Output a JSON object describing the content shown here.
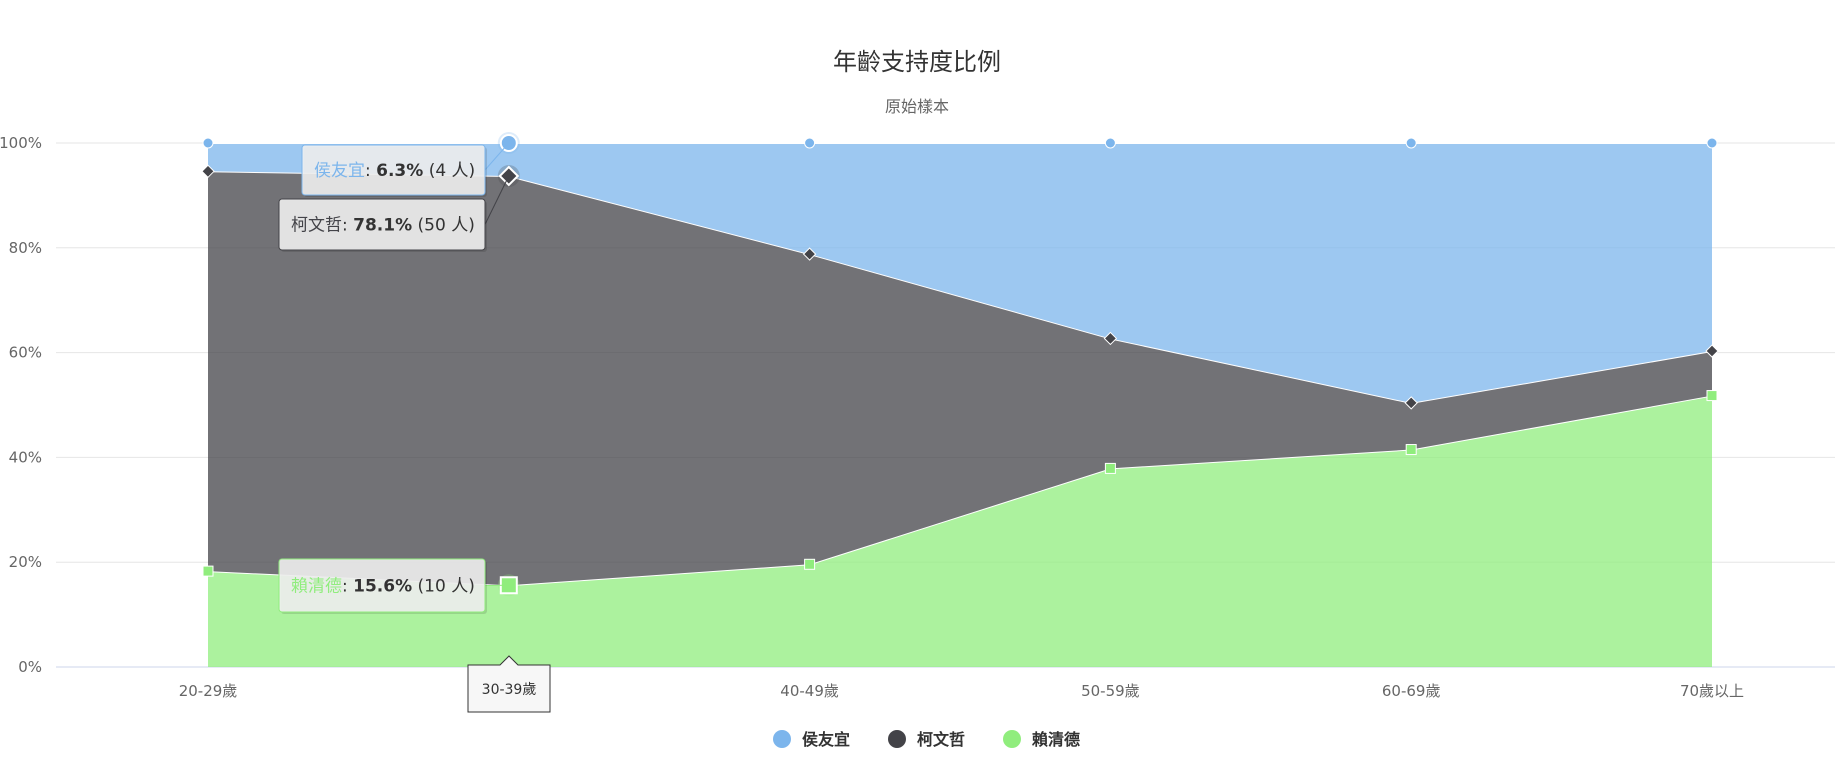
{
  "chart_data": {
    "type": "area",
    "stacking": "percent",
    "title": "年齡支持度比例",
    "subtitle": "原始樣本",
    "categories": [
      "20-29歲",
      "30-39歲",
      "40-49歲",
      "50-59歲",
      "60-69歲",
      "70歲以上"
    ],
    "ylim": [
      0,
      100
    ],
    "yticks": [
      "0%",
      "20%",
      "40%",
      "60%",
      "80%",
      "100%"
    ],
    "grid": true,
    "legend_position": "bottom",
    "series": [
      {
        "name": "侯友宜",
        "color": "#7cb5ec",
        "marker": "circle",
        "values": [
          5.4,
          6.3,
          21.2,
          37.3,
          49.6,
          39.7
        ]
      },
      {
        "name": "柯文哲",
        "color": "#434348",
        "marker": "diamond",
        "values": [
          76.3,
          78.1,
          59.2,
          24.8,
          8.9,
          8.5
        ]
      },
      {
        "name": "賴清德",
        "color": "#90ed7d",
        "marker": "square",
        "values": [
          18.3,
          15.6,
          19.6,
          37.9,
          41.5,
          51.8
        ]
      }
    ],
    "tooltip": {
      "category": "30-39歲",
      "unit": "人",
      "entries": [
        {
          "name": "侯友宜",
          "percent": "6.3%",
          "count": "4"
        },
        {
          "name": "柯文哲",
          "percent": "78.1%",
          "count": "50"
        },
        {
          "name": "賴清德",
          "percent": "15.6%",
          "count": "10"
        }
      ]
    }
  }
}
